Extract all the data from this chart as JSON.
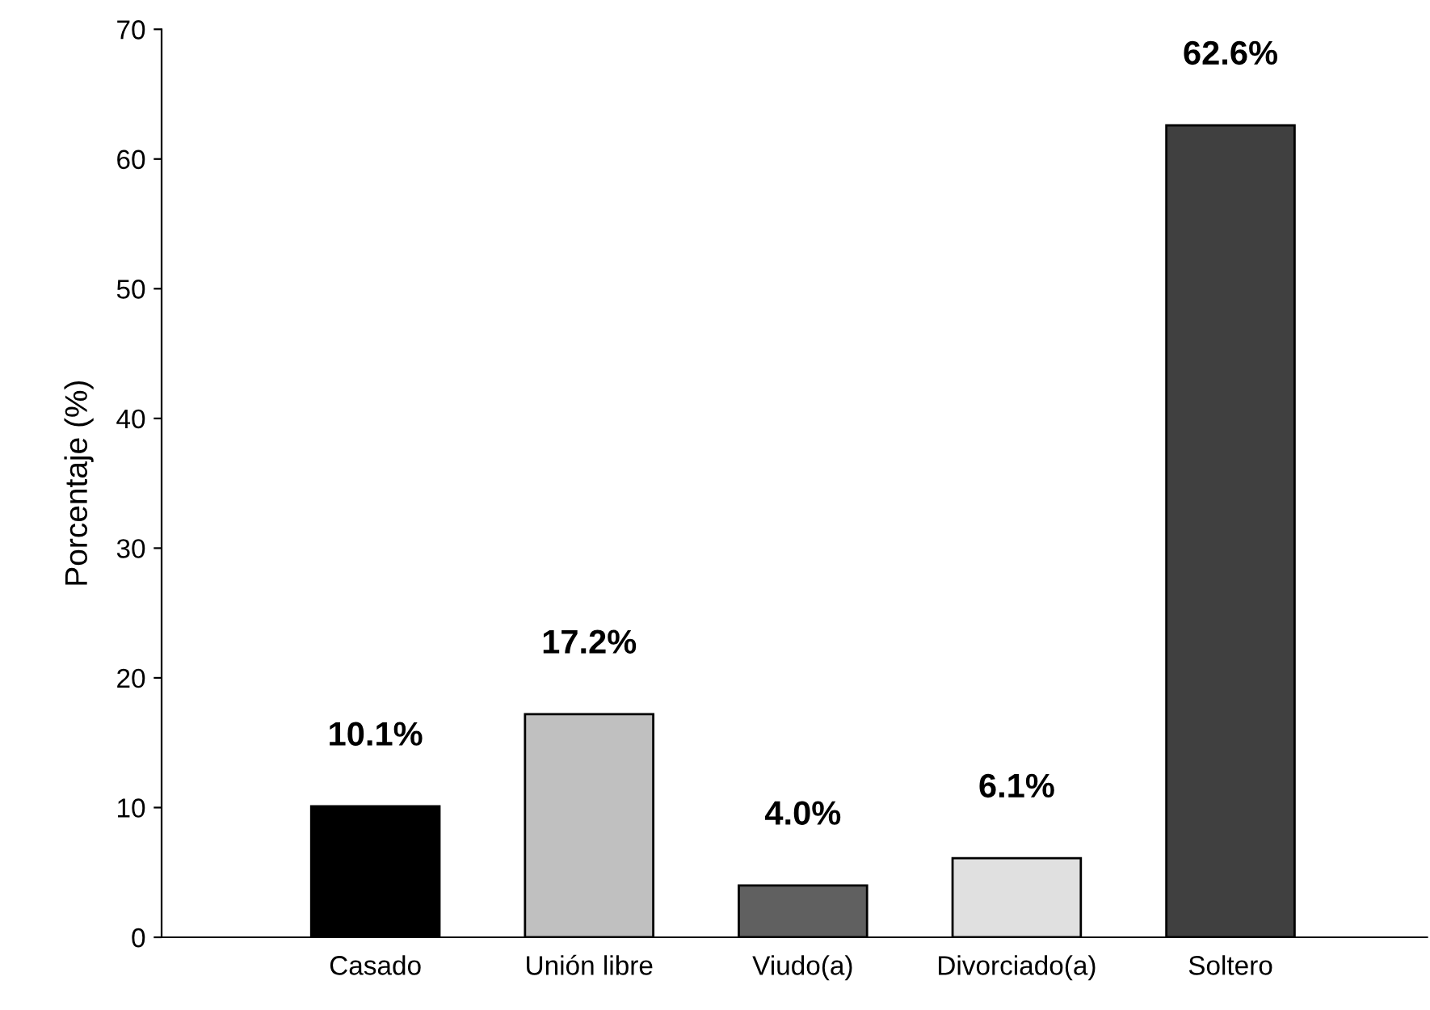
{
  "chart_data": {
    "type": "bar",
    "ylabel": "Porcentaje (%)",
    "categories": [
      "Casado",
      "Unión libre",
      "Viudo(a)",
      "Divorciado(a)",
      "Soltero"
    ],
    "values": [
      10.1,
      17.2,
      4.0,
      6.1,
      62.6
    ],
    "value_labels": [
      "10.1%",
      "17.2%",
      "4.0%",
      "6.1%",
      "62.6%"
    ],
    "colors": [
      "#000000",
      "#c0c0c0",
      "#606060",
      "#e0e0e0",
      "#404040"
    ],
    "ylim": [
      0,
      70
    ],
    "yticks": [
      0,
      10,
      20,
      30,
      40,
      50,
      60,
      70
    ],
    "grid": false,
    "legend": false
  }
}
